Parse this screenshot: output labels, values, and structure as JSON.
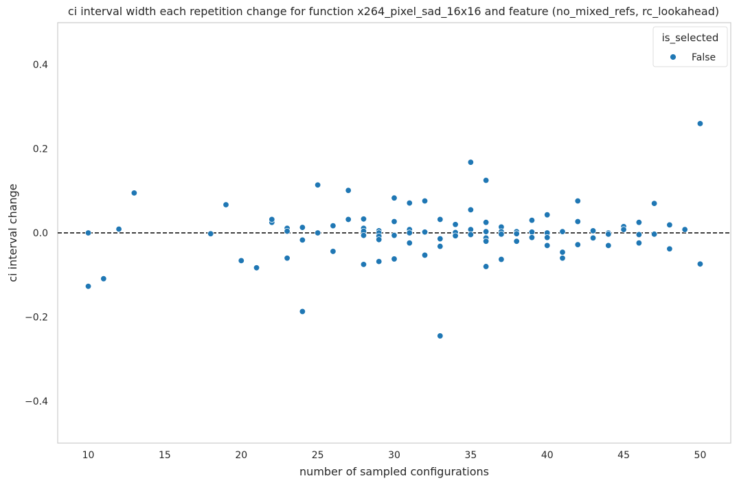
{
  "chart_data": {
    "type": "scatter",
    "title": "ci interval width each repetition change for function x264_pixel_sad_16x16 and feature (no_mixed_refs, rc_lookahead)",
    "xlabel": "number of sampled configurations",
    "ylabel": "ci interval change",
    "xlim": [
      8,
      52
    ],
    "ylim": [
      -0.5,
      0.5
    ],
    "xticks": [
      10,
      15,
      20,
      25,
      30,
      35,
      40,
      45,
      50
    ],
    "xtick_labels": [
      "10",
      "15",
      "20",
      "25",
      "30",
      "35",
      "40",
      "45",
      "50"
    ],
    "yticks": [
      -0.4,
      -0.2,
      0.0,
      0.2,
      0.4
    ],
    "ytick_labels": [
      "−0.4",
      "−0.2",
      "0.0",
      "0.2",
      "0.4"
    ],
    "grid": false,
    "reference_line": {
      "y": 0.0,
      "style": "dashed",
      "color": "#000000"
    },
    "legend": {
      "title": "is_selected",
      "position": "top-right",
      "entries": [
        "False"
      ]
    },
    "series": [
      {
        "name": "False",
        "color": "#1f77b4",
        "points": [
          [
            10,
            0.0
          ],
          [
            10,
            -0.127
          ],
          [
            11,
            -0.109
          ],
          [
            12,
            0.009
          ],
          [
            13,
            0.095
          ],
          [
            18,
            -0.002
          ],
          [
            19,
            0.067
          ],
          [
            20,
            -0.066
          ],
          [
            21,
            -0.083
          ],
          [
            22,
            0.025
          ],
          [
            22,
            0.032
          ],
          [
            23,
            0.011
          ],
          [
            23,
            0.004
          ],
          [
            23,
            -0.06
          ],
          [
            24,
            0.013
          ],
          [
            24,
            -0.017
          ],
          [
            24,
            -0.187
          ],
          [
            25,
            0.114
          ],
          [
            25,
            0.0
          ],
          [
            26,
            0.017
          ],
          [
            26,
            -0.044
          ],
          [
            27,
            0.101
          ],
          [
            27,
            0.032
          ],
          [
            28,
            0.033
          ],
          [
            28,
            0.011
          ],
          [
            28,
            0.004
          ],
          [
            28,
            -0.006
          ],
          [
            28,
            -0.075
          ],
          [
            29,
            0.005
          ],
          [
            29,
            0.0
          ],
          [
            29,
            -0.008
          ],
          [
            29,
            -0.016
          ],
          [
            29,
            -0.068
          ],
          [
            30,
            0.083
          ],
          [
            30,
            0.027
          ],
          [
            30,
            -0.006
          ],
          [
            30,
            -0.062
          ],
          [
            31,
            0.071
          ],
          [
            31,
            0.008
          ],
          [
            31,
            0.0
          ],
          [
            31,
            -0.024
          ],
          [
            32,
            0.076
          ],
          [
            32,
            0.002
          ],
          [
            32,
            -0.053
          ],
          [
            33,
            0.032
          ],
          [
            33,
            -0.014
          ],
          [
            33,
            -0.032
          ],
          [
            33,
            -0.245
          ],
          [
            34,
            0.02
          ],
          [
            34,
            0.001
          ],
          [
            34,
            -0.007
          ],
          [
            35,
            0.168
          ],
          [
            35,
            0.055
          ],
          [
            35,
            0.008
          ],
          [
            35,
            -0.004
          ],
          [
            36,
            0.125
          ],
          [
            36,
            0.025
          ],
          [
            36,
            0.003
          ],
          [
            36,
            -0.012
          ],
          [
            36,
            -0.02
          ],
          [
            36,
            -0.08
          ],
          [
            37,
            0.014
          ],
          [
            37,
            0.003
          ],
          [
            37,
            -0.003
          ],
          [
            37,
            -0.063
          ],
          [
            38,
            0.003
          ],
          [
            38,
            -0.002
          ],
          [
            38,
            -0.02
          ],
          [
            39,
            0.03
          ],
          [
            39,
            0.002
          ],
          [
            39,
            -0.011
          ],
          [
            40,
            0.043
          ],
          [
            40,
            0.0
          ],
          [
            40,
            -0.011
          ],
          [
            40,
            -0.03
          ],
          [
            41,
            0.003
          ],
          [
            41,
            -0.046
          ],
          [
            41,
            -0.06
          ],
          [
            42,
            0.076
          ],
          [
            42,
            0.027
          ],
          [
            42,
            -0.028
          ],
          [
            43,
            0.005
          ],
          [
            43,
            -0.012
          ],
          [
            44,
            0.0
          ],
          [
            44,
            -0.003
          ],
          [
            44,
            -0.03
          ],
          [
            45,
            0.015
          ],
          [
            45,
            0.008
          ],
          [
            46,
            0.025
          ],
          [
            46,
            -0.004
          ],
          [
            46,
            -0.024
          ],
          [
            47,
            0.07
          ],
          [
            47,
            -0.003
          ],
          [
            48,
            0.019
          ],
          [
            48,
            -0.038
          ],
          [
            49,
            0.008
          ],
          [
            50,
            0.26
          ],
          [
            50,
            -0.074
          ]
        ]
      }
    ]
  }
}
